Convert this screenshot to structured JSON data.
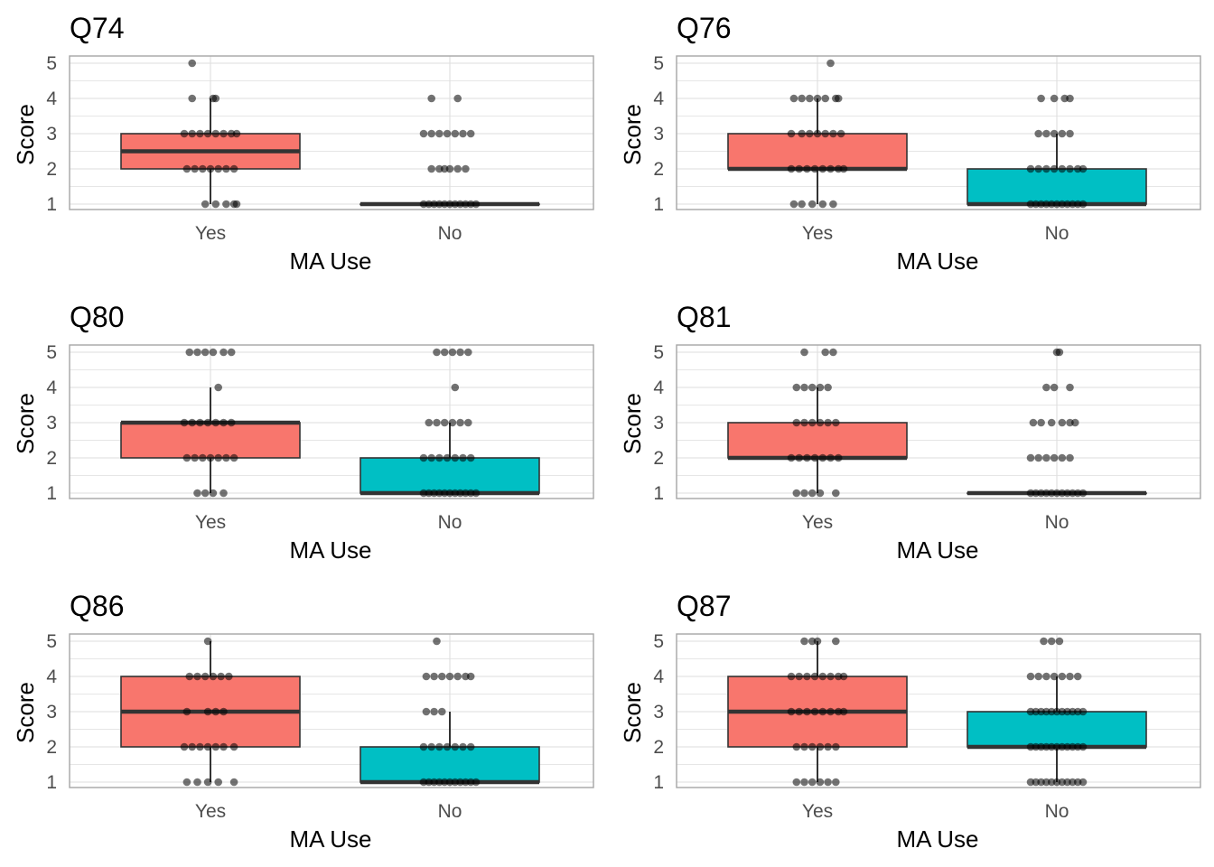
{
  "colors": {
    "yes_fill": "#f8766d",
    "no_fill": "#00bfc4",
    "box_stroke": "#333333",
    "point": "#000000",
    "panel_border": "#a6a6a6",
    "grid": "#dedede",
    "tick_text": "#4d4d4d"
  },
  "chart_data": [
    {
      "type": "box",
      "title": "Q74",
      "xlabel": "MA Use",
      "ylabel": "Score",
      "categories": [
        "Yes",
        "No"
      ],
      "yticks": [
        1,
        2,
        3,
        4,
        5
      ],
      "ylim": [
        1,
        5
      ],
      "grid": true,
      "legend": "none",
      "boxes": [
        {
          "category": "Yes",
          "min": 1,
          "q1": 2,
          "median": 2.5,
          "q3": 3,
          "max": 4,
          "points": [
            {
              "y": 1,
              "x": [
                -0.02,
                0.02,
                0.06,
                0.09,
                0.1
              ]
            },
            {
              "y": 2,
              "x": [
                -0.09,
                -0.06,
                -0.03,
                0,
                0.03,
                0.06,
                0.09
              ]
            },
            {
              "y": 3,
              "x": [
                -0.1,
                -0.07,
                -0.04,
                -0.01,
                0.02,
                0.05,
                0.08,
                0.1
              ]
            },
            {
              "y": 4,
              "x": [
                -0.07,
                0.01,
                0.02
              ]
            },
            {
              "y": 5,
              "x": [
                -0.07
              ]
            }
          ]
        },
        {
          "category": "No",
          "min": 1,
          "q1": 1,
          "median": 1,
          "q3": 1,
          "max": 1,
          "points": [
            {
              "y": 1,
              "x": [
                -0.1,
                -0.08,
                -0.06,
                -0.04,
                -0.02,
                0,
                0.02,
                0.04,
                0.06,
                0.08,
                0.1
              ]
            },
            {
              "y": 2,
              "x": [
                -0.07,
                -0.04,
                -0.02,
                0,
                0.03,
                0.06
              ]
            },
            {
              "y": 3,
              "x": [
                -0.1,
                -0.07,
                -0.04,
                -0.01,
                0.02,
                0.05,
                0.08
              ]
            },
            {
              "y": 4,
              "x": [
                -0.07,
                0.03
              ]
            }
          ]
        }
      ]
    },
    {
      "type": "box",
      "title": "Q76",
      "xlabel": "MA Use",
      "ylabel": "Score",
      "categories": [
        "Yes",
        "No"
      ],
      "yticks": [
        1,
        2,
        3,
        4,
        5
      ],
      "ylim": [
        1,
        5
      ],
      "grid": true,
      "legend": "none",
      "boxes": [
        {
          "category": "Yes",
          "min": 1,
          "q1": 2,
          "median": 2,
          "q3": 3,
          "max": 4,
          "points": [
            {
              "y": 1,
              "x": [
                -0.09,
                -0.06,
                -0.02,
                0.02,
                0.06
              ]
            },
            {
              "y": 2,
              "x": [
                -0.1,
                -0.07,
                -0.04,
                -0.01,
                0.02,
                0.05,
                0.08,
                0.1
              ]
            },
            {
              "y": 3,
              "x": [
                -0.1,
                -0.06,
                -0.03,
                0,
                0.03,
                0.06,
                0.09
              ]
            },
            {
              "y": 4,
              "x": [
                -0.09,
                -0.06,
                -0.03,
                0,
                0.03,
                0.07,
                0.08
              ]
            },
            {
              "y": 5,
              "x": [
                0.05
              ]
            }
          ]
        },
        {
          "category": "No",
          "min": 1,
          "q1": 1,
          "median": 1,
          "q3": 2,
          "max": 3,
          "points": [
            {
              "y": 1,
              "x": [
                -0.1,
                -0.08,
                -0.06,
                -0.04,
                -0.02,
                0,
                0.02,
                0.04,
                0.06,
                0.08,
                0.1
              ]
            },
            {
              "y": 2,
              "x": [
                -0.1,
                -0.07,
                -0.04,
                -0.01,
                0.02,
                0.05,
                0.08,
                0.1
              ]
            },
            {
              "y": 3,
              "x": [
                -0.07,
                -0.04,
                -0.01,
                0.02,
                0.05
              ]
            },
            {
              "y": 4,
              "x": [
                -0.06,
                -0.01,
                0.03,
                0.05
              ]
            }
          ]
        }
      ]
    },
    {
      "type": "box",
      "title": "Q80",
      "xlabel": "MA Use",
      "ylabel": "Score",
      "categories": [
        "Yes",
        "No"
      ],
      "yticks": [
        1,
        2,
        3,
        4,
        5
      ],
      "ylim": [
        1,
        5
      ],
      "grid": true,
      "legend": "none",
      "boxes": [
        {
          "category": "Yes",
          "min": 1,
          "q1": 2,
          "median": 3,
          "q3": 3,
          "max": 4,
          "points": [
            {
              "y": 1,
              "x": [
                -0.05,
                -0.02,
                0.01,
                0.05
              ]
            },
            {
              "y": 2,
              "x": [
                -0.09,
                -0.06,
                -0.03,
                0,
                0.03,
                0.06,
                0.09
              ]
            },
            {
              "y": 3,
              "x": [
                -0.1,
                -0.07,
                -0.04,
                -0.01,
                0.02,
                0.05,
                0.08
              ]
            },
            {
              "y": 4,
              "x": [
                0.03
              ]
            },
            {
              "y": 5,
              "x": [
                -0.08,
                -0.05,
                -0.02,
                0.01,
                0.05,
                0.08
              ]
            }
          ]
        },
        {
          "category": "No",
          "min": 1,
          "q1": 1,
          "median": 1,
          "q3": 2,
          "max": 3,
          "points": [
            {
              "y": 1,
              "x": [
                -0.1,
                -0.08,
                -0.06,
                -0.04,
                -0.02,
                0,
                0.02,
                0.04,
                0.06,
                0.08,
                0.1
              ]
            },
            {
              "y": 2,
              "x": [
                -0.1,
                -0.07,
                -0.04,
                -0.01,
                0.02,
                0.05,
                0.08
              ]
            },
            {
              "y": 3,
              "x": [
                -0.08,
                -0.05,
                -0.02,
                0.01,
                0.04,
                0.07
              ]
            },
            {
              "y": 4,
              "x": [
                0.02
              ]
            },
            {
              "y": 5,
              "x": [
                -0.05,
                -0.02,
                0.01,
                0.04,
                0.07
              ]
            }
          ]
        }
      ]
    },
    {
      "type": "box",
      "title": "Q81",
      "xlabel": "MA Use",
      "ylabel": "Score",
      "categories": [
        "Yes",
        "No"
      ],
      "yticks": [
        1,
        2,
        3,
        4,
        5
      ],
      "ylim": [
        1,
        5
      ],
      "grid": true,
      "legend": "none",
      "boxes": [
        {
          "category": "Yes",
          "min": 1,
          "q1": 2,
          "median": 2,
          "q3": 3,
          "max": 4,
          "points": [
            {
              "y": 1,
              "x": [
                -0.08,
                -0.05,
                -0.02,
                0.01,
                0.07
              ]
            },
            {
              "y": 2,
              "x": [
                -0.1,
                -0.07,
                -0.04,
                -0.01,
                0.02,
                0.05,
                0.08
              ]
            },
            {
              "y": 3,
              "x": [
                -0.08,
                -0.05,
                -0.02,
                0.01,
                0.04,
                0.07
              ]
            },
            {
              "y": 4,
              "x": [
                -0.08,
                -0.05,
                -0.02,
                0.01,
                0.04
              ]
            },
            {
              "y": 5,
              "x": [
                -0.05,
                0.03,
                0.06
              ]
            }
          ]
        },
        {
          "category": "No",
          "min": 1,
          "q1": 1,
          "median": 1,
          "q3": 1,
          "max": 1,
          "points": [
            {
              "y": 1,
              "x": [
                -0.1,
                -0.08,
                -0.06,
                -0.04,
                -0.02,
                0,
                0.02,
                0.04,
                0.06,
                0.08,
                0.1
              ]
            },
            {
              "y": 2,
              "x": [
                -0.1,
                -0.07,
                -0.04,
                -0.01,
                0.02,
                0.05
              ]
            },
            {
              "y": 3,
              "x": [
                -0.09,
                -0.06,
                -0.02,
                0.02,
                0.05,
                0.07
              ]
            },
            {
              "y": 4,
              "x": [
                -0.04,
                -0.01,
                0.05
              ]
            },
            {
              "y": 5,
              "x": [
                0,
                0.01
              ]
            }
          ]
        }
      ]
    },
    {
      "type": "box",
      "title": "Q86",
      "xlabel": "MA Use",
      "ylabel": "Score",
      "categories": [
        "Yes",
        "No"
      ],
      "yticks": [
        1,
        2,
        3,
        4,
        5
      ],
      "ylim": [
        1,
        5
      ],
      "grid": true,
      "legend": "none",
      "boxes": [
        {
          "category": "Yes",
          "min": 1,
          "q1": 2,
          "median": 3,
          "q3": 4,
          "max": 5,
          "points": [
            {
              "y": 1,
              "x": [
                -0.09,
                -0.05,
                -0.01,
                0.03,
                0.09
              ]
            },
            {
              "y": 2,
              "x": [
                -0.1,
                -0.07,
                -0.04,
                -0.01,
                0.02,
                0.05,
                0.09
              ]
            },
            {
              "y": 3,
              "x": [
                -0.09,
                -0.01,
                0.02,
                0.05
              ]
            },
            {
              "y": 4,
              "x": [
                -0.08,
                -0.05,
                -0.02,
                0.01,
                0.04,
                0.07
              ]
            },
            {
              "y": 5,
              "x": [
                -0.01
              ]
            }
          ]
        },
        {
          "category": "No",
          "min": 1,
          "q1": 1,
          "median": 1,
          "q3": 2,
          "max": 3,
          "points": [
            {
              "y": 1,
              "x": [
                -0.1,
                -0.08,
                -0.06,
                -0.04,
                -0.02,
                0,
                0.02,
                0.04,
                0.06,
                0.08,
                0.1
              ]
            },
            {
              "y": 2,
              "x": [
                -0.1,
                -0.07,
                -0.04,
                -0.01,
                0.02,
                0.05,
                0.08
              ]
            },
            {
              "y": 3,
              "x": [
                -0.09,
                -0.06,
                -0.03
              ]
            },
            {
              "y": 4,
              "x": [
                -0.09,
                -0.06,
                -0.03,
                0,
                0.03,
                0.06,
                0.08
              ]
            },
            {
              "y": 5,
              "x": [
                -0.05
              ]
            }
          ]
        }
      ]
    },
    {
      "type": "box",
      "title": "Q87",
      "xlabel": "MA Use",
      "ylabel": "Score",
      "categories": [
        "Yes",
        "No"
      ],
      "yticks": [
        1,
        2,
        3,
        4,
        5
      ],
      "ylim": [
        1,
        5
      ],
      "grid": true,
      "legend": "none",
      "boxes": [
        {
          "category": "Yes",
          "min": 1,
          "q1": 2,
          "median": 3,
          "q3": 4,
          "max": 5,
          "points": [
            {
              "y": 1,
              "x": [
                -0.08,
                -0.05,
                -0.02,
                0.01,
                0.04,
                0.07
              ]
            },
            {
              "y": 2,
              "x": [
                -0.08,
                -0.05,
                -0.02,
                0.01,
                0.04,
                0.07
              ]
            },
            {
              "y": 3,
              "x": [
                -0.1,
                -0.07,
                -0.04,
                -0.01,
                0.02,
                0.05,
                0.08,
                0.1
              ]
            },
            {
              "y": 4,
              "x": [
                -0.1,
                -0.07,
                -0.04,
                -0.01,
                0.02,
                0.05,
                0.08,
                0.1
              ]
            },
            {
              "y": 5,
              "x": [
                -0.05,
                -0.02,
                0,
                0.07
              ]
            }
          ]
        },
        {
          "category": "No",
          "min": 1,
          "q1": 2,
          "median": 2,
          "q3": 3,
          "max": 4,
          "points": [
            {
              "y": 1,
              "x": [
                -0.1,
                -0.08,
                -0.06,
                -0.04,
                -0.02,
                0,
                0.02,
                0.04,
                0.06,
                0.08,
                0.1
              ]
            },
            {
              "y": 2,
              "x": [
                -0.1,
                -0.08,
                -0.06,
                -0.04,
                -0.02,
                0,
                0.02,
                0.04,
                0.06,
                0.08,
                0.1
              ]
            },
            {
              "y": 3,
              "x": [
                -0.1,
                -0.08,
                -0.06,
                -0.04,
                -0.02,
                0,
                0.02,
                0.04,
                0.06,
                0.08,
                0.1
              ]
            },
            {
              "y": 4,
              "x": [
                -0.1,
                -0.07,
                -0.04,
                -0.01,
                0.02,
                0.05,
                0.08
              ]
            },
            {
              "y": 5,
              "x": [
                -0.05,
                -0.02,
                0.01
              ]
            }
          ]
        }
      ]
    }
  ]
}
